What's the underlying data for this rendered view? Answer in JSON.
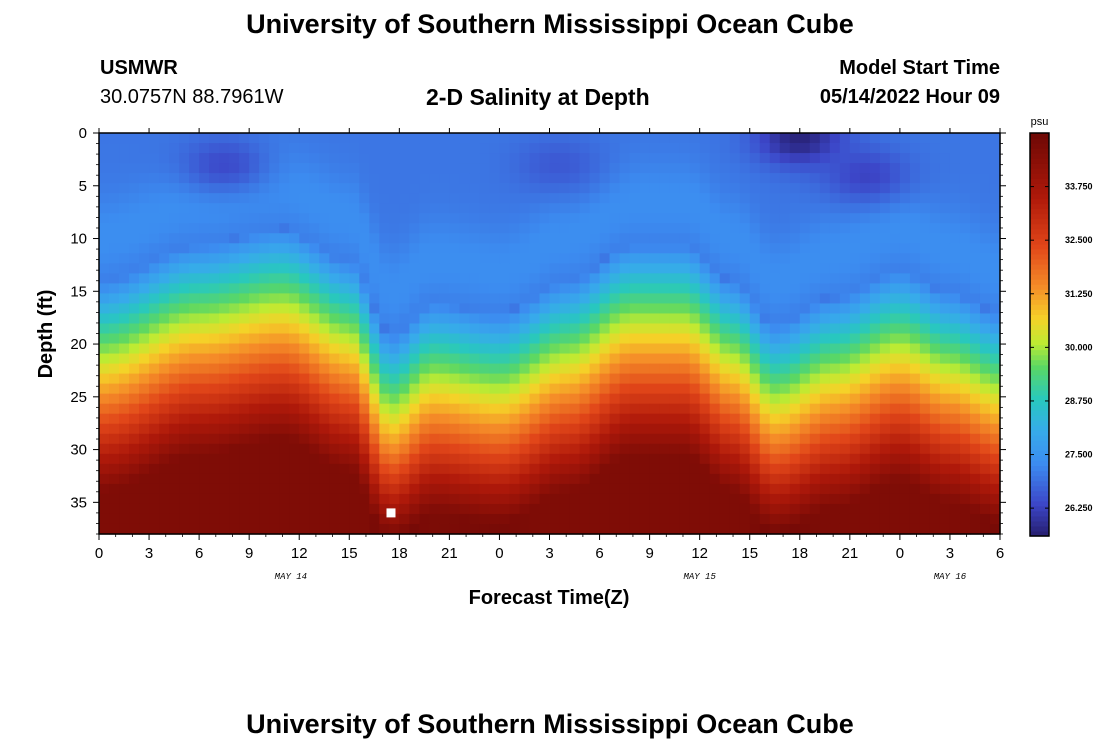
{
  "header": {
    "title": "University of Southern Mississippi Ocean Cube",
    "station": "USMWR",
    "coords": "30.0757N  88.7961W",
    "subtitle": "2-D Salinity at Depth",
    "start_label": "Model Start Time",
    "start_time": "05/14/2022 Hour 09"
  },
  "footer": {
    "title": "University of Southern Mississippi Ocean Cube"
  },
  "chart_data": {
    "type": "heatmap",
    "title": "2-D Salinity at Depth",
    "xlabel": "Forecast Time(Z)",
    "ylabel": "Depth (ft)",
    "y_inverted": true,
    "xlim_hours": [
      0,
      54
    ],
    "ylim": [
      0,
      38
    ],
    "x_tick_labels": [
      "0",
      "3",
      "6",
      "9",
      "12",
      "15",
      "18",
      "21",
      "0",
      "3",
      "6",
      "9",
      "12",
      "15",
      "18",
      "21",
      "0",
      "3",
      "6"
    ],
    "x_tick_hours": [
      0,
      3,
      6,
      9,
      12,
      15,
      18,
      21,
      24,
      27,
      30,
      33,
      36,
      39,
      42,
      45,
      48,
      51,
      54
    ],
    "y_ticks": [
      0,
      5,
      10,
      15,
      20,
      25,
      30,
      35
    ],
    "date_labels": [
      {
        "label": "MAY 14",
        "hour": 11.5
      },
      {
        "label": "MAY 15",
        "hour": 36
      },
      {
        "label": "MAY 16",
        "hour": 51
      }
    ],
    "colorbar": {
      "unit": "psu",
      "min": 25.6,
      "max": 35.0,
      "tick_labels": [
        "26.250",
        "27.500",
        "28.750",
        "30.000",
        "31.250",
        "32.500",
        "33.750"
      ],
      "tick_values": [
        26.25,
        27.5,
        28.75,
        30.0,
        31.25,
        32.5,
        33.75
      ]
    },
    "background_salinity": 27.0,
    "bottom_salinity": 34.6,
    "halocline_depth_ft": [
      {
        "hour": 0,
        "depth": 18
      },
      {
        "hour": 6,
        "depth": 14.5
      },
      {
        "hour": 11,
        "depth": 13
      },
      {
        "hour": 15,
        "depth": 16
      },
      {
        "hour": 17.5,
        "depth": 23
      },
      {
        "hour": 20,
        "depth": 20
      },
      {
        "hour": 24,
        "depth": 21
      },
      {
        "hour": 28,
        "depth": 18
      },
      {
        "hour": 32,
        "depth": 14.5
      },
      {
        "hour": 35,
        "depth": 14.5
      },
      {
        "hour": 38,
        "depth": 18
      },
      {
        "hour": 40.5,
        "depth": 22
      },
      {
        "hour": 44,
        "depth": 19.5
      },
      {
        "hour": 48,
        "depth": 17
      },
      {
        "hour": 51,
        "depth": 19
      },
      {
        "hour": 54,
        "depth": 21
      }
    ],
    "fresh_patches": [
      {
        "hour": 7.5,
        "depth": 3,
        "salinity": 26.4
      },
      {
        "hour": 27.5,
        "depth": 3,
        "salinity": 26.6
      },
      {
        "hour": 42,
        "depth": 0.5,
        "salinity": 25.7
      },
      {
        "hour": 46,
        "depth": 4,
        "salinity": 26.3
      }
    ],
    "marker": {
      "hour": 17.5,
      "depth": 36,
      "color": "#ffffff"
    }
  }
}
